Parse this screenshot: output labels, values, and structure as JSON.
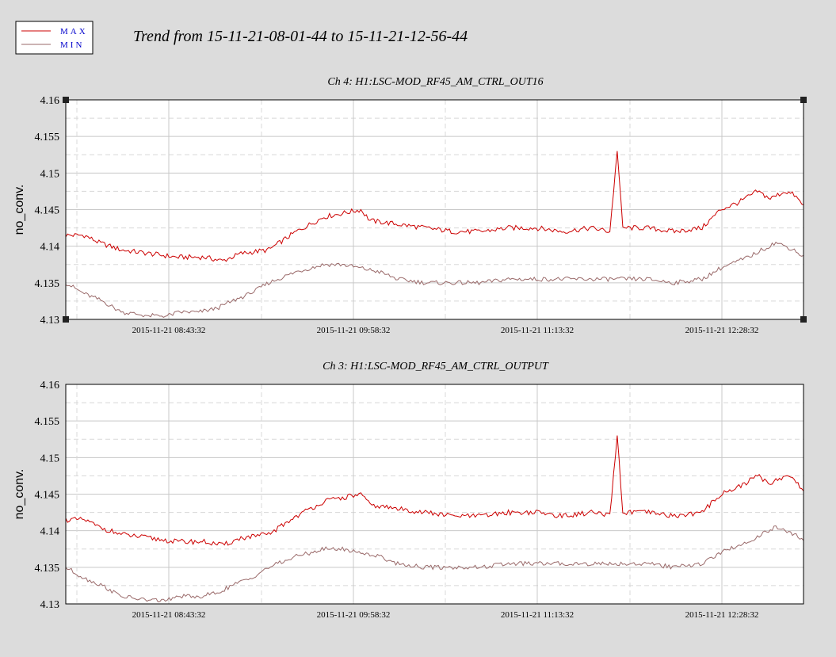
{
  "page_title": "Trend from 15-11-21-08-01-44 to 15-11-21-12-56-44",
  "legend": [
    {
      "label": "MAX",
      "color": "#cc0000"
    },
    {
      "label": "MIN",
      "color": "#9a6a6a"
    }
  ],
  "colors": {
    "background": "#dcdcdc",
    "plot_bg": "#ffffff",
    "grid": "#c8c8c8",
    "legend_text": "#0000cc"
  },
  "chart_data": [
    {
      "type": "line",
      "title": "Ch 4: H1:LSC-MOD_RF45_AM_CTRL_OUT16",
      "xlabel": "",
      "ylabel": "no_conv.",
      "ylim": [
        4.13,
        4.16
      ],
      "yticks": [
        "4.16",
        "4.155",
        "4.15",
        "4.145",
        "4.14",
        "4.135",
        "4.13"
      ],
      "xticks": [
        "2015-11-21 08:43:32",
        "2015-11-21 09:58:32",
        "2015-11-21 11:13:32",
        "2015-11-21 12:28:32"
      ],
      "grid": true,
      "series": [
        {
          "name": "MAX",
          "points": [
            [
              0,
              4.1415
            ],
            [
              10,
              4.1415
            ],
            [
              18,
              4.1405
            ],
            [
              30,
              4.1395
            ],
            [
              45,
              4.139
            ],
            [
              60,
              4.1385
            ],
            [
              75,
              4.1385
            ],
            [
              85,
              4.138
            ],
            [
              95,
              4.139
            ],
            [
              110,
              4.1395
            ],
            [
              125,
              4.142
            ],
            [
              140,
              4.144
            ],
            [
              150,
              4.1445
            ],
            [
              160,
              4.145
            ],
            [
              165,
              4.1435
            ],
            [
              180,
              4.143
            ],
            [
              195,
              4.1425
            ],
            [
              210,
              4.142
            ],
            [
              225,
              4.142
            ],
            [
              240,
              4.1425
            ],
            [
              255,
              4.1425
            ],
            [
              270,
              4.142
            ],
            [
              285,
              4.1425
            ],
            [
              295,
              4.142
            ],
            [
              299,
              4.153
            ],
            [
              302,
              4.1425
            ],
            [
              315,
              4.1425
            ],
            [
              330,
              4.142
            ],
            [
              345,
              4.1425
            ],
            [
              355,
              4.145
            ],
            [
              365,
              4.146
            ],
            [
              375,
              4.1475
            ],
            [
              382,
              4.1465
            ],
            [
              390,
              4.1475
            ],
            [
              395,
              4.147
            ],
            [
              400,
              4.1455
            ]
          ]
        },
        {
          "name": "MIN",
          "points": [
            [
              0,
              4.135
            ],
            [
              10,
              4.1335
            ],
            [
              20,
              4.1325
            ],
            [
              30,
              4.131
            ],
            [
              45,
              4.1305
            ],
            [
              55,
              4.1305
            ],
            [
              62,
              4.131
            ],
            [
              72,
              4.131
            ],
            [
              82,
              4.1315
            ],
            [
              90,
              4.1325
            ],
            [
              100,
              4.1335
            ],
            [
              110,
              4.135
            ],
            [
              125,
              4.1365
            ],
            [
              140,
              4.1375
            ],
            [
              150,
              4.1375
            ],
            [
              160,
              4.137
            ],
            [
              170,
              4.1365
            ],
            [
              180,
              4.1355
            ],
            [
              195,
              4.135
            ],
            [
              210,
              4.135
            ],
            [
              225,
              4.135
            ],
            [
              240,
              4.1355
            ],
            [
              255,
              4.1355
            ],
            [
              270,
              4.1355
            ],
            [
              285,
              4.1355
            ],
            [
              300,
              4.1355
            ],
            [
              315,
              4.1355
            ],
            [
              330,
              4.135
            ],
            [
              345,
              4.1355
            ],
            [
              355,
              4.137
            ],
            [
              370,
              4.1385
            ],
            [
              385,
              4.1405
            ],
            [
              395,
              4.1395
            ],
            [
              400,
              4.1385
            ]
          ]
        }
      ]
    },
    {
      "type": "line",
      "title": "Ch 3: H1:LSC-MOD_RF45_AM_CTRL_OUTPUT",
      "xlabel": "",
      "ylabel": "no_conv.",
      "ylim": [
        4.13,
        4.16
      ],
      "yticks": [
        "4.16",
        "4.155",
        "4.15",
        "4.145",
        "4.14",
        "4.135",
        "4.13"
      ],
      "xticks": [
        "2015-11-21 08:43:32",
        "2015-11-21 09:58:32",
        "2015-11-21 11:13:32",
        "2015-11-21 12:28:32"
      ],
      "grid": true,
      "series": [
        {
          "name": "MAX",
          "points": [
            [
              0,
              4.1415
            ],
            [
              10,
              4.1415
            ],
            [
              18,
              4.1405
            ],
            [
              30,
              4.1395
            ],
            [
              45,
              4.139
            ],
            [
              60,
              4.1385
            ],
            [
              75,
              4.1385
            ],
            [
              85,
              4.138
            ],
            [
              95,
              4.139
            ],
            [
              110,
              4.1395
            ],
            [
              125,
              4.142
            ],
            [
              140,
              4.144
            ],
            [
              150,
              4.1445
            ],
            [
              160,
              4.145
            ],
            [
              165,
              4.1435
            ],
            [
              180,
              4.143
            ],
            [
              195,
              4.1425
            ],
            [
              210,
              4.142
            ],
            [
              225,
              4.142
            ],
            [
              240,
              4.1425
            ],
            [
              255,
              4.1425
            ],
            [
              270,
              4.142
            ],
            [
              285,
              4.1425
            ],
            [
              295,
              4.142
            ],
            [
              299,
              4.153
            ],
            [
              302,
              4.1425
            ],
            [
              315,
              4.1425
            ],
            [
              330,
              4.142
            ],
            [
              345,
              4.1425
            ],
            [
              355,
              4.145
            ],
            [
              365,
              4.146
            ],
            [
              375,
              4.1475
            ],
            [
              382,
              4.1465
            ],
            [
              390,
              4.1475
            ],
            [
              395,
              4.147
            ],
            [
              400,
              4.1455
            ]
          ]
        },
        {
          "name": "MIN",
          "points": [
            [
              0,
              4.135
            ],
            [
              10,
              4.1335
            ],
            [
              20,
              4.1325
            ],
            [
              30,
              4.131
            ],
            [
              45,
              4.1305
            ],
            [
              55,
              4.1305
            ],
            [
              62,
              4.131
            ],
            [
              72,
              4.131
            ],
            [
              82,
              4.1315
            ],
            [
              90,
              4.1325
            ],
            [
              100,
              4.1335
            ],
            [
              110,
              4.135
            ],
            [
              125,
              4.1365
            ],
            [
              140,
              4.1375
            ],
            [
              150,
              4.1375
            ],
            [
              160,
              4.137
            ],
            [
              170,
              4.1365
            ],
            [
              180,
              4.1355
            ],
            [
              195,
              4.135
            ],
            [
              210,
              4.135
            ],
            [
              225,
              4.135
            ],
            [
              240,
              4.1355
            ],
            [
              255,
              4.1355
            ],
            [
              270,
              4.1355
            ],
            [
              285,
              4.1355
            ],
            [
              300,
              4.1355
            ],
            [
              315,
              4.1355
            ],
            [
              330,
              4.135
            ],
            [
              345,
              4.1355
            ],
            [
              355,
              4.137
            ],
            [
              370,
              4.1385
            ],
            [
              385,
              4.1405
            ],
            [
              395,
              4.1395
            ],
            [
              400,
              4.1385
            ]
          ]
        }
      ]
    }
  ]
}
